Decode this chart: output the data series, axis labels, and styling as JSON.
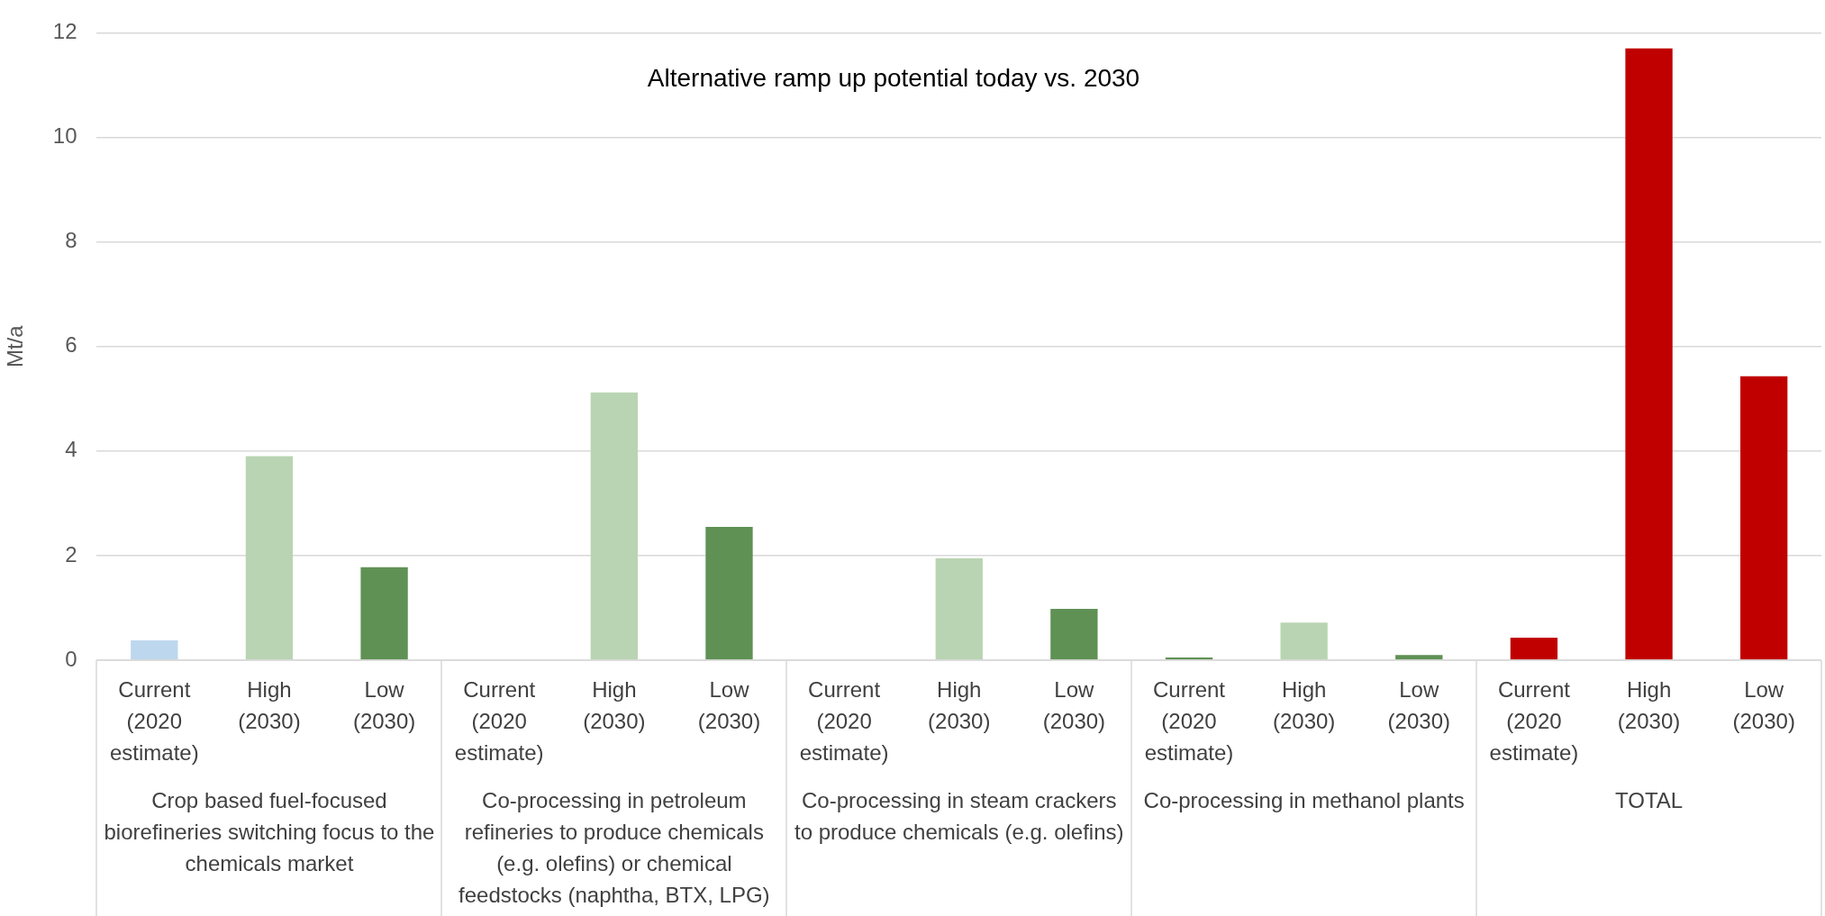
{
  "chart_data": {
    "type": "bar",
    "title": "Alternative ramp up potential today vs. 2030",
    "ylabel": "Mt/a",
    "categories": [
      "Current (2020 estimate)",
      "High (2030)",
      "Low (2030)",
      "Current (2020 estimate)",
      "High (2030)",
      "Low (2030)",
      "Current (2020 estimate)",
      "High (2030)",
      "Low (2030)",
      "Current (2020 estimate)",
      "High (2030)",
      "Low (2030)",
      "Current (2020 estimate)",
      "High (2030)",
      "Low (2030)"
    ],
    "values": [
      0.38,
      3.9,
      1.78,
      0,
      5.12,
      2.55,
      0,
      1.95,
      0.98,
      0.05,
      0.72,
      0.1,
      0.43,
      11.7,
      5.43
    ],
    "colors": [
      "#bdd7ee",
      "#b9d4b2",
      "#5f9155",
      "#bdd7ee",
      "#b9d4b2",
      "#5f9155",
      "#bdd7ee",
      "#b9d4b2",
      "#5f9155",
      "#5f9155",
      "#b9d4b2",
      "#5f9155",
      "#c00000",
      "#c00000",
      "#c00000"
    ],
    "ylim": [
      0,
      12
    ],
    "yticks": [
      0,
      2,
      4,
      6,
      8,
      10,
      12
    ],
    "grid": "y",
    "legend": false,
    "annotations": [
      "Crop based fuel-focused biorefineries switching focus to the chemicals market",
      "Co-processing in petroleum refineries to produce chemicals (e.g. olefins) or chemical feedstocks (naphtha, BTX, LPG)",
      "Co-processing in steam crackers to produce chemicals (e.g. olefins)",
      "Co-processing in methanol plants",
      "TOTAL"
    ]
  }
}
